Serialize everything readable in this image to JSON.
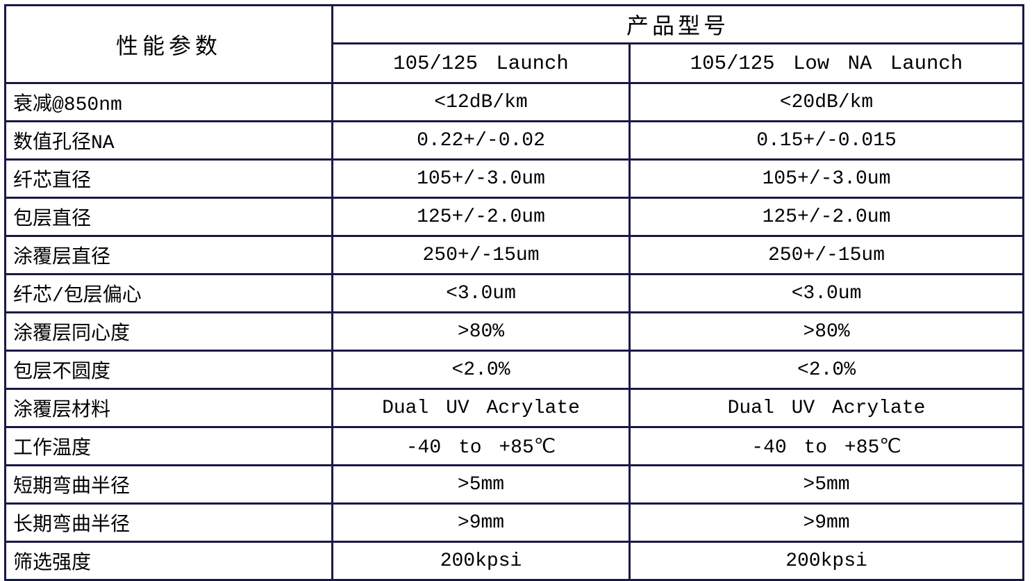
{
  "colors": {
    "border": "#191945",
    "text": "#000000",
    "background": "#ffffff"
  },
  "table": {
    "header": {
      "param_col_title": "性能参数",
      "product_group_title": "产品型号",
      "products": [
        "105/125 Launch",
        "105/125 Low NA Launch"
      ]
    },
    "rows": [
      {
        "label": "衰减@850nm",
        "values": [
          "<12dB/km",
          "<20dB/km"
        ]
      },
      {
        "label": "数值孔径NA",
        "values": [
          "0.22+/-0.02",
          "0.15+/-0.015"
        ]
      },
      {
        "label": "纤芯直径",
        "values": [
          "105+/-3.0um",
          "105+/-3.0um"
        ]
      },
      {
        "label": "包层直径",
        "values": [
          "125+/-2.0um",
          "125+/-2.0um"
        ]
      },
      {
        "label": "涂覆层直径",
        "values": [
          "250+/-15um",
          "250+/-15um"
        ]
      },
      {
        "label": "纤芯/包层偏心",
        "values": [
          "<3.0um",
          "<3.0um"
        ]
      },
      {
        "label": "涂覆层同心度",
        "values": [
          ">80%",
          ">80%"
        ]
      },
      {
        "label": "包层不圆度",
        "values": [
          "<2.0%",
          "<2.0%"
        ]
      },
      {
        "label": "涂覆层材料",
        "values": [
          "Dual UV Acrylate",
          "Dual UV Acrylate"
        ]
      },
      {
        "label": "工作温度",
        "values": [
          "-40 to +85℃",
          "-40 to +85℃"
        ]
      },
      {
        "label": "短期弯曲半径",
        "values": [
          ">5mm",
          ">5mm"
        ]
      },
      {
        "label": "长期弯曲半径",
        "values": [
          ">9mm",
          ">9mm"
        ]
      },
      {
        "label": "筛选强度",
        "values": [
          "200kpsi",
          "200kpsi"
        ]
      }
    ]
  }
}
